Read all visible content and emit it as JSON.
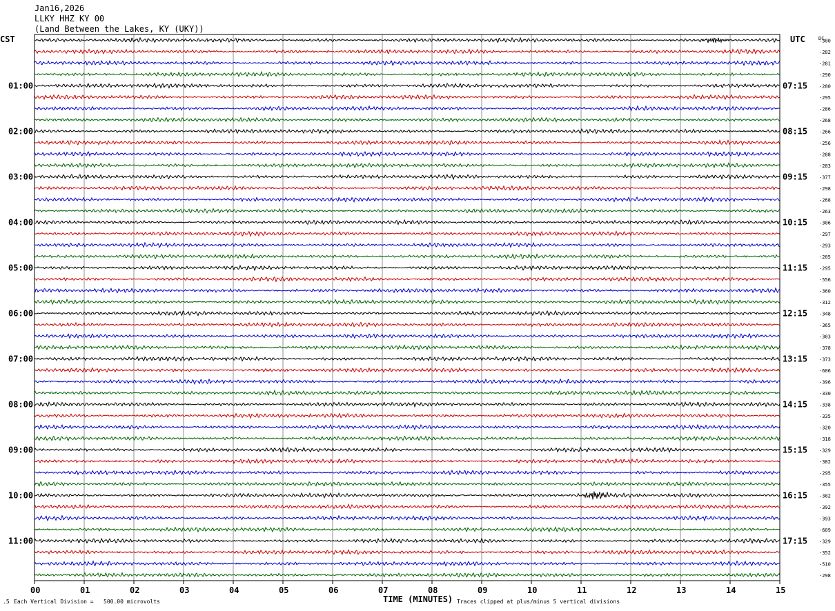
{
  "header": {
    "date": "Jan16,2026",
    "station": "LLKY HHZ KY 00",
    "location": "(Land Between the Lakes, KY (UKY))"
  },
  "left_timezone": "CST",
  "right_timezone": "UTC",
  "dc_label": "DC",
  "chart_data": {
    "type": "line",
    "subtype": "seismic-helicorder",
    "x": {
      "label": "TIME (MINUTES)",
      "range": [
        0,
        15
      ],
      "ticks": [
        "00",
        "01",
        "02",
        "03",
        "04",
        "05",
        "06",
        "07",
        "08",
        "09",
        "10",
        "11",
        "12",
        "13",
        "14",
        "15"
      ],
      "grid": true
    },
    "rows_per_hour": 4,
    "row_count": 48,
    "trace_colors": [
      "#000000",
      "#cc0000",
      "#0000cc",
      "#006400"
    ],
    "left_hour_labels": [
      "01:00",
      "02:00",
      "03:00",
      "04:00",
      "05:00",
      "06:00",
      "07:00",
      "08:00",
      "09:00",
      "10:00",
      "11:00"
    ],
    "right_hour_labels": [
      "07:15",
      "08:15",
      "09:15",
      "10:15",
      "11:15",
      "12:15",
      "13:15",
      "14:15",
      "15:15",
      "16:15",
      "17:15"
    ],
    "dc_offsets": [
      "-300",
      "-282",
      "-281",
      "-290",
      "-280",
      "-295",
      "-286",
      "-268",
      "-266",
      "-256",
      "-288",
      "-283",
      "-377",
      "-298",
      "-268",
      "-263",
      "-306",
      "-297",
      "-293",
      "-205",
      "-295",
      "-556",
      "-360",
      "-312",
      "-348",
      "-365",
      "-303",
      "-378",
      "-373",
      "-606",
      "-396",
      "-330",
      "-338",
      "-335",
      "-320",
      "-318",
      "-329",
      "-382",
      "-295",
      "-355",
      "-382",
      "-392",
      "-393",
      "-609",
      "-329",
      "-352",
      "-510",
      "-298"
    ],
    "events": [
      {
        "row": 0,
        "minute": 13.7,
        "amplitude": "small"
      },
      {
        "row": 40,
        "minute": 11.3,
        "amplitude": "medium"
      }
    ],
    "scale_note": "Each Vertical Division =   500.00 microvolts",
    "clip_note": "Traces clipped at plus/minus 5 vertical divisions"
  }
}
